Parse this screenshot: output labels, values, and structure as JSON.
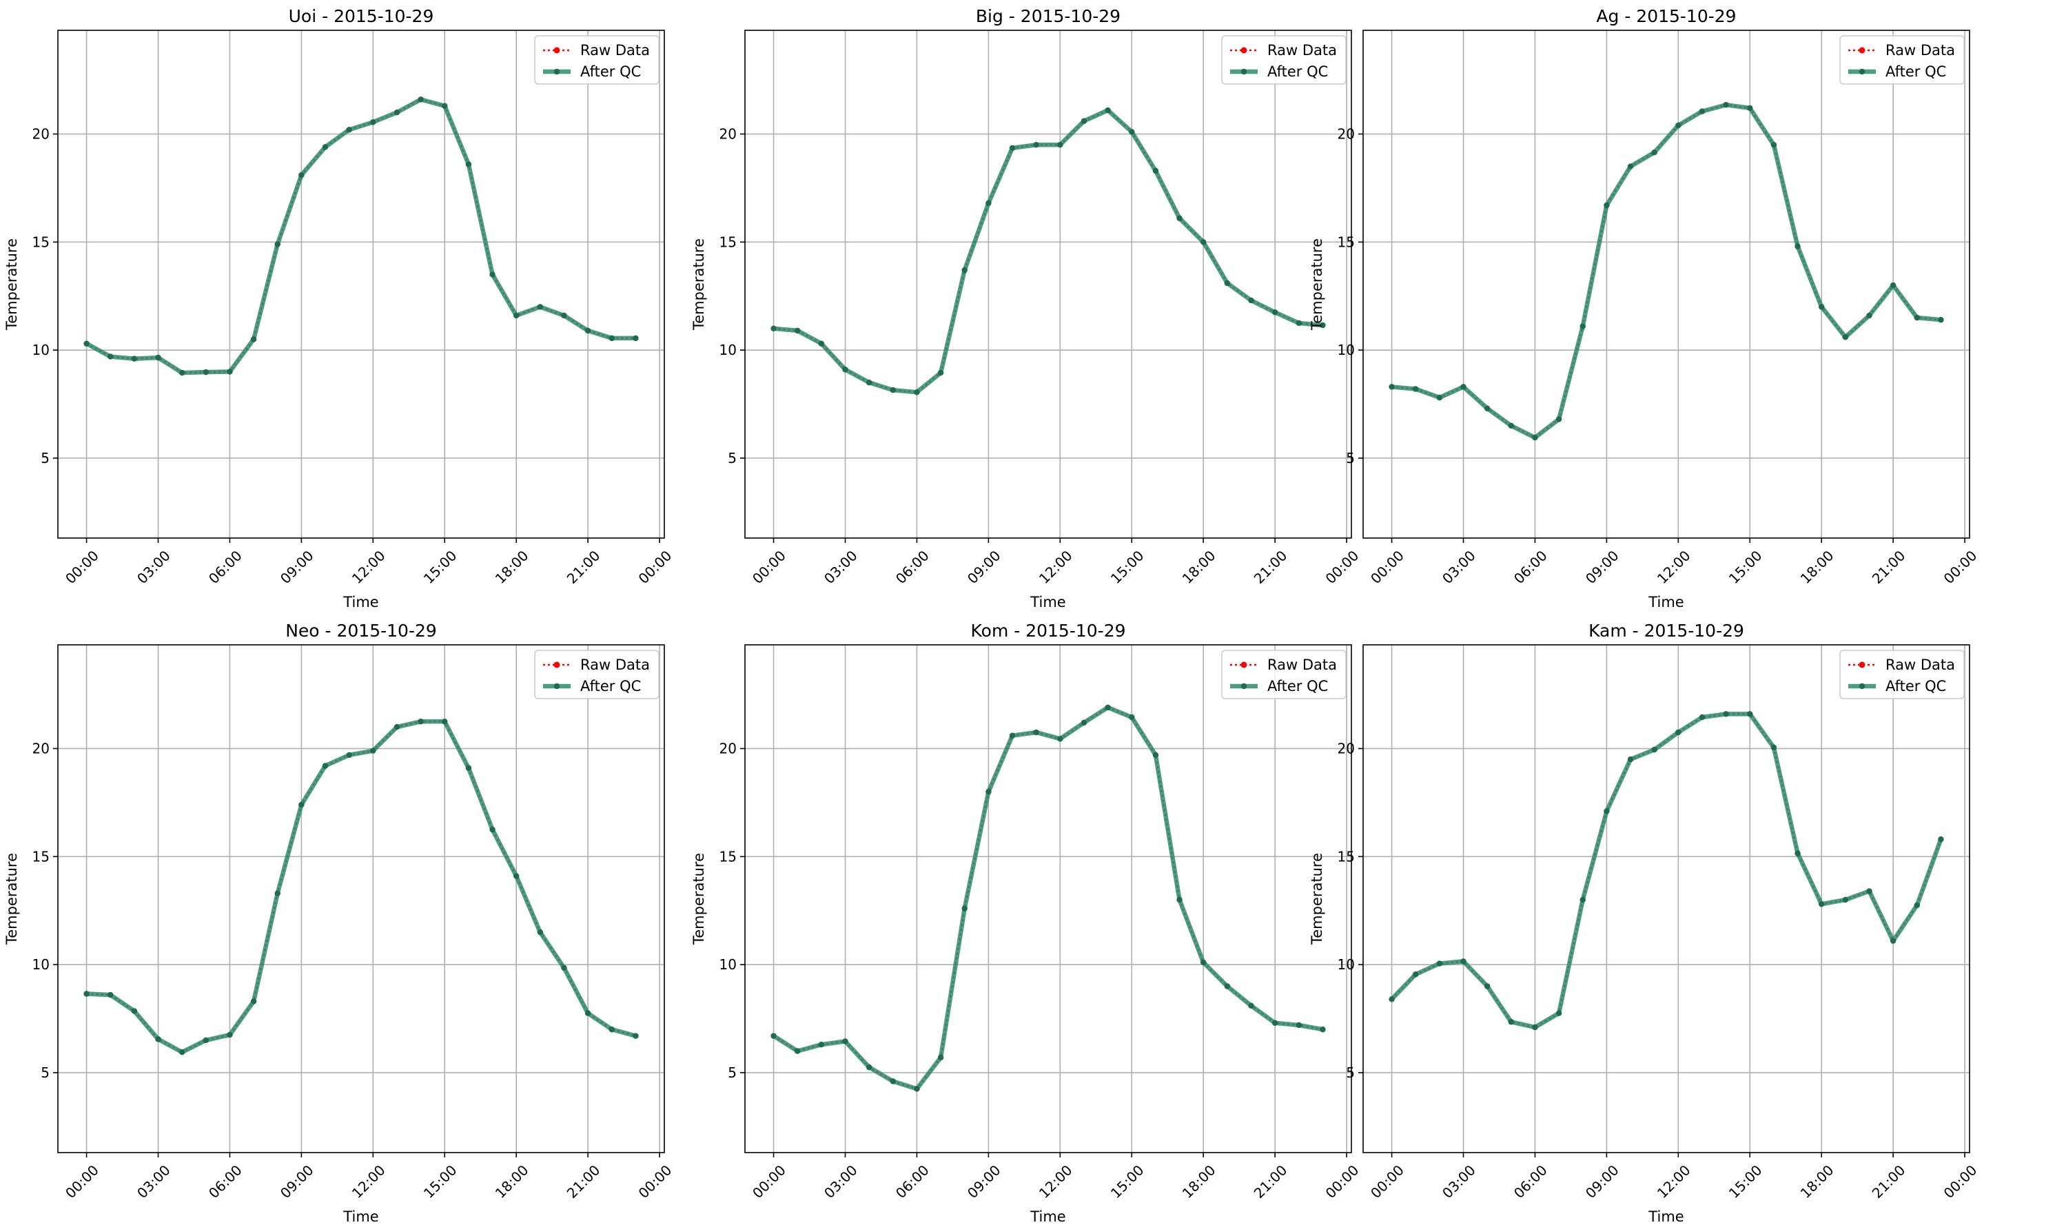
{
  "figure": {
    "background": "#ffffff"
  },
  "style": {
    "raw_color": "#ff0000",
    "qc_color": "#2e8b6e",
    "grid_color": "#b0b0b0",
    "axis_color": "#000000"
  },
  "chart_data": [
    {
      "type": "line",
      "title": "Uoi - 2015-10-29",
      "xlabel": "Time",
      "ylabel": "Temperature",
      "x_ticks": [
        "00:00",
        "03:00",
        "06:00",
        "09:00",
        "12:00",
        "15:00",
        "18:00",
        "21:00",
        "00:00"
      ],
      "y_ticks": [
        5,
        10,
        15,
        20
      ],
      "xlim_hours": [
        -1.2,
        24.2
      ],
      "ylim": [
        1.3,
        24.8
      ],
      "grid": true,
      "legend": "upper right",
      "series": [
        {
          "name": "Raw Data",
          "style": "dotted",
          "values": [
            10.3,
            9.7,
            9.6,
            9.65,
            8.95,
            8.98,
            9.0,
            10.5,
            14.9,
            18.1,
            19.4,
            20.2,
            20.55,
            21.0,
            21.6,
            21.3,
            18.6,
            13.5,
            11.6,
            12.0,
            11.6,
            10.9,
            10.55,
            10.55
          ]
        },
        {
          "name": "After QC",
          "style": "solid",
          "values": [
            10.3,
            9.7,
            9.6,
            9.65,
            8.95,
            8.98,
            9.0,
            10.5,
            14.9,
            18.1,
            19.4,
            20.2,
            20.55,
            21.0,
            21.6,
            21.3,
            18.6,
            13.5,
            11.6,
            12.0,
            11.6,
            10.9,
            10.55,
            10.55
          ]
        }
      ]
    },
    {
      "type": "line",
      "title": "Big - 2015-10-29",
      "xlabel": "Time",
      "ylabel": "Temperature",
      "x_ticks": [
        "00:00",
        "03:00",
        "06:00",
        "09:00",
        "12:00",
        "15:00",
        "18:00",
        "21:00",
        "00:00"
      ],
      "y_ticks": [
        5,
        10,
        15,
        20
      ],
      "xlim_hours": [
        -1.2,
        24.2
      ],
      "ylim": [
        1.3,
        24.8
      ],
      "grid": true,
      "legend": "upper right",
      "series": [
        {
          "name": "Raw Data",
          "style": "dotted",
          "values": [
            11.0,
            10.9,
            10.3,
            9.1,
            8.5,
            8.15,
            8.05,
            8.95,
            13.7,
            16.8,
            19.35,
            19.5,
            19.5,
            20.6,
            21.1,
            20.1,
            18.3,
            16.1,
            15.0,
            13.1,
            12.3,
            11.75,
            11.25,
            11.15
          ]
        },
        {
          "name": "After QC",
          "style": "solid",
          "values": [
            11.0,
            10.9,
            10.3,
            9.1,
            8.5,
            8.15,
            8.05,
            8.95,
            13.7,
            16.8,
            19.35,
            19.5,
            19.5,
            20.6,
            21.1,
            20.1,
            18.3,
            16.1,
            15.0,
            13.1,
            12.3,
            11.75,
            11.25,
            11.15
          ]
        }
      ]
    },
    {
      "type": "line",
      "title": "Ag - 2015-10-29",
      "xlabel": "Time",
      "ylabel": "Temperature",
      "x_ticks": [
        "00:00",
        "03:00",
        "06:00",
        "09:00",
        "12:00",
        "15:00",
        "18:00",
        "21:00",
        "00:00"
      ],
      "y_ticks": [
        5,
        10,
        15,
        20
      ],
      "xlim_hours": [
        -1.2,
        24.2
      ],
      "ylim": [
        1.3,
        24.8
      ],
      "grid": true,
      "legend": "upper right",
      "series": [
        {
          "name": "Raw Data",
          "style": "dotted",
          "values": [
            8.3,
            8.2,
            7.8,
            8.3,
            7.3,
            6.5,
            5.95,
            6.8,
            11.1,
            16.7,
            18.5,
            19.15,
            20.4,
            21.05,
            21.35,
            21.2,
            19.5,
            14.8,
            12.0,
            10.6,
            11.6,
            13.0,
            11.5,
            11.4
          ]
        },
        {
          "name": "After QC",
          "style": "solid",
          "values": [
            8.3,
            8.2,
            7.8,
            8.3,
            7.3,
            6.5,
            5.95,
            6.8,
            11.1,
            16.7,
            18.5,
            19.15,
            20.4,
            21.05,
            21.35,
            21.2,
            19.5,
            14.8,
            12.0,
            10.6,
            11.6,
            13.0,
            11.5,
            11.4
          ]
        }
      ]
    },
    {
      "type": "line",
      "title": "Neo - 2015-10-29",
      "xlabel": "Time",
      "ylabel": "Temperature",
      "x_ticks": [
        "00:00",
        "03:00",
        "06:00",
        "09:00",
        "12:00",
        "15:00",
        "18:00",
        "21:00",
        "00:00"
      ],
      "y_ticks": [
        5,
        10,
        15,
        20
      ],
      "xlim_hours": [
        -1.2,
        24.2
      ],
      "ylim": [
        1.3,
        24.8
      ],
      "grid": true,
      "legend": "upper right",
      "series": [
        {
          "name": "Raw Data",
          "style": "dotted",
          "values": [
            8.65,
            8.6,
            7.85,
            6.55,
            5.95,
            6.5,
            6.75,
            8.3,
            13.3,
            17.4,
            19.2,
            19.7,
            19.9,
            21.0,
            21.25,
            21.25,
            19.1,
            16.25,
            14.1,
            11.5,
            9.85,
            7.75,
            7.0,
            6.7
          ]
        },
        {
          "name": "After QC",
          "style": "solid",
          "values": [
            8.65,
            8.6,
            7.85,
            6.55,
            5.95,
            6.5,
            6.75,
            8.3,
            13.3,
            17.4,
            19.2,
            19.7,
            19.9,
            21.0,
            21.25,
            21.25,
            19.1,
            16.25,
            14.1,
            11.5,
            9.85,
            7.75,
            7.0,
            6.7
          ]
        }
      ]
    },
    {
      "type": "line",
      "title": "Kom - 2015-10-29",
      "xlabel": "Time",
      "ylabel": "Temperature",
      "x_ticks": [
        "00:00",
        "03:00",
        "06:00",
        "09:00",
        "12:00",
        "15:00",
        "18:00",
        "21:00",
        "00:00"
      ],
      "y_ticks": [
        5,
        10,
        15,
        20
      ],
      "xlim_hours": [
        -1.2,
        24.2
      ],
      "ylim": [
        1.3,
        24.8
      ],
      "grid": true,
      "legend": "upper right",
      "series": [
        {
          "name": "Raw Data",
          "style": "dotted",
          "values": [
            6.7,
            6.0,
            6.3,
            6.45,
            5.25,
            4.6,
            4.25,
            5.7,
            12.6,
            18.0,
            20.6,
            20.75,
            20.45,
            21.2,
            21.9,
            21.45,
            19.7,
            13.0,
            10.1,
            9.0,
            8.1,
            7.3,
            7.2,
            7.0
          ]
        },
        {
          "name": "After QC",
          "style": "solid",
          "values": [
            6.7,
            6.0,
            6.3,
            6.45,
            5.25,
            4.6,
            4.25,
            5.7,
            12.6,
            18.0,
            20.6,
            20.75,
            20.45,
            21.2,
            21.9,
            21.45,
            19.7,
            13.0,
            10.1,
            9.0,
            8.1,
            7.3,
            7.2,
            7.0
          ]
        }
      ]
    },
    {
      "type": "line",
      "title": "Kam - 2015-10-29",
      "xlabel": "Time",
      "ylabel": "Temperature",
      "x_ticks": [
        "00:00",
        "03:00",
        "06:00",
        "09:00",
        "12:00",
        "15:00",
        "18:00",
        "21:00",
        "00:00"
      ],
      "y_ticks": [
        5,
        10,
        15,
        20
      ],
      "xlim_hours": [
        -1.2,
        24.2
      ],
      "ylim": [
        1.3,
        24.8
      ],
      "grid": true,
      "legend": "upper right",
      "series": [
        {
          "name": "Raw Data",
          "style": "dotted",
          "values": [
            8.4,
            9.55,
            10.05,
            10.15,
            9.0,
            7.35,
            7.1,
            7.75,
            13.0,
            17.1,
            19.5,
            19.95,
            20.75,
            21.45,
            21.6,
            21.6,
            20.05,
            15.15,
            12.8,
            13.0,
            13.4,
            11.1,
            12.75,
            15.8
          ]
        },
        {
          "name": "After QC",
          "style": "solid",
          "values": [
            8.4,
            9.55,
            10.05,
            10.15,
            9.0,
            7.35,
            7.1,
            7.75,
            13.0,
            17.1,
            19.5,
            19.95,
            20.75,
            21.45,
            21.6,
            21.6,
            20.05,
            15.15,
            12.8,
            13.0,
            13.4,
            11.1,
            12.75,
            15.8
          ]
        }
      ]
    }
  ]
}
